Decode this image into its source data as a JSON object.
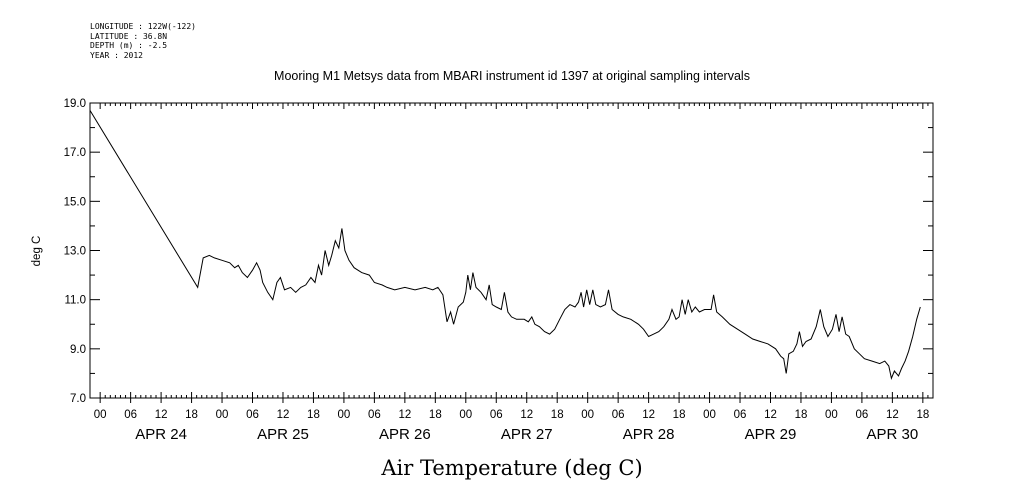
{
  "header": {
    "longitude": "LONGITUDE : 122W(-122)",
    "latitude": "LATITUDE : 36.8N",
    "depth": "DEPTH (m) : -2.5",
    "year": "YEAR : 2012"
  },
  "caption": "Air Temperature (deg C)",
  "chart_data": {
    "type": "line",
    "title": "Mooring M1 Metsys data from MBARI instrument id 1397 at original sampling intervals",
    "ylabel": "deg C",
    "xlabel": "",
    "ylim": [
      7.0,
      19.0
    ],
    "y_ticks": [
      "7.0",
      "9.0",
      "11.0",
      "13.0",
      "15.0",
      "17.0",
      "19.0"
    ],
    "x_unit": "hours since APR 24 00:00",
    "xlim": [
      -2,
      164
    ],
    "x_hour_labels": [
      "00",
      "06",
      "12",
      "18",
      "00",
      "06",
      "12",
      "18",
      "00",
      "06",
      "12",
      "18",
      "00",
      "06",
      "12",
      "18",
      "00",
      "06",
      "12",
      "18",
      "00",
      "06",
      "12",
      "18",
      "00",
      "06",
      "12",
      "18"
    ],
    "x_day_labels": [
      "APR 24",
      "APR 25",
      "APR 26",
      "APR 27",
      "APR 28",
      "APR 29",
      "APR 30"
    ],
    "grid": false,
    "series": [
      {
        "points": [
          [
            -2,
            18.7
          ],
          [
            19.2,
            11.5
          ],
          [
            20.3,
            12.7
          ],
          [
            21.5,
            12.8
          ],
          [
            22.5,
            12.7
          ],
          [
            24,
            12.6
          ],
          [
            25.5,
            12.5
          ],
          [
            26.5,
            12.3
          ],
          [
            27.2,
            12.4
          ],
          [
            28,
            12.1
          ],
          [
            29,
            11.9
          ],
          [
            30,
            12.2
          ],
          [
            30.8,
            12.5
          ],
          [
            31.5,
            12.2
          ],
          [
            32,
            11.7
          ],
          [
            33,
            11.3
          ],
          [
            34,
            11.0
          ],
          [
            34.8,
            11.7
          ],
          [
            35.5,
            11.9
          ],
          [
            36.3,
            11.4
          ],
          [
            37.5,
            11.5
          ],
          [
            38.5,
            11.3
          ],
          [
            39.5,
            11.5
          ],
          [
            40.5,
            11.6
          ],
          [
            41.5,
            11.9
          ],
          [
            42.3,
            11.7
          ],
          [
            43,
            12.4
          ],
          [
            43.6,
            12.0
          ],
          [
            44.3,
            13.0
          ],
          [
            45,
            12.4
          ],
          [
            45.6,
            12.8
          ],
          [
            46.3,
            13.4
          ],
          [
            47,
            13.1
          ],
          [
            47.6,
            13.9
          ],
          [
            48.2,
            13.0
          ],
          [
            49,
            12.6
          ],
          [
            50,
            12.3
          ],
          [
            51.5,
            12.1
          ],
          [
            53,
            12.0
          ],
          [
            54,
            11.7
          ],
          [
            55.5,
            11.6
          ],
          [
            56.5,
            11.5
          ],
          [
            58,
            11.4
          ],
          [
            60,
            11.5
          ],
          [
            62,
            11.4
          ],
          [
            64,
            11.5
          ],
          [
            65.5,
            11.4
          ],
          [
            66.5,
            11.5
          ],
          [
            67.5,
            11.2
          ],
          [
            68.3,
            10.1
          ],
          [
            69,
            10.5
          ],
          [
            69.6,
            10.0
          ],
          [
            70.5,
            10.7
          ],
          [
            71.5,
            10.9
          ],
          [
            72,
            11.3
          ],
          [
            72.4,
            12.0
          ],
          [
            72.9,
            11.4
          ],
          [
            73.4,
            12.1
          ],
          [
            74,
            11.5
          ],
          [
            75,
            11.3
          ],
          [
            76,
            11.0
          ],
          [
            76.6,
            11.6
          ],
          [
            77.2,
            10.8
          ],
          [
            78,
            10.7
          ],
          [
            79,
            10.6
          ],
          [
            79.6,
            11.3
          ],
          [
            80.3,
            10.5
          ],
          [
            81,
            10.3
          ],
          [
            82,
            10.2
          ],
          [
            83.5,
            10.2
          ],
          [
            84.3,
            10.1
          ],
          [
            85,
            10.3
          ],
          [
            85.6,
            10.0
          ],
          [
            86.5,
            9.9
          ],
          [
            87.5,
            9.7
          ],
          [
            88.5,
            9.6
          ],
          [
            89.5,
            9.8
          ],
          [
            90.5,
            10.2
          ],
          [
            91.5,
            10.6
          ],
          [
            92.5,
            10.8
          ],
          [
            93.5,
            10.7
          ],
          [
            94.2,
            10.9
          ],
          [
            94.7,
            11.3
          ],
          [
            95.2,
            10.7
          ],
          [
            95.8,
            11.4
          ],
          [
            96.4,
            10.8
          ],
          [
            97,
            11.4
          ],
          [
            97.6,
            10.8
          ],
          [
            98.5,
            10.7
          ],
          [
            99.5,
            10.8
          ],
          [
            100.1,
            11.4
          ],
          [
            100.8,
            10.6
          ],
          [
            102,
            10.4
          ],
          [
            103,
            10.3
          ],
          [
            104.5,
            10.2
          ],
          [
            106,
            10.0
          ],
          [
            107,
            9.8
          ],
          [
            108,
            9.5
          ],
          [
            109,
            9.6
          ],
          [
            110,
            9.7
          ],
          [
            111,
            9.9
          ],
          [
            112,
            10.2
          ],
          [
            112.6,
            10.6
          ],
          [
            113.4,
            10.2
          ],
          [
            114,
            10.3
          ],
          [
            114.6,
            11.0
          ],
          [
            115.2,
            10.4
          ],
          [
            115.8,
            11.0
          ],
          [
            116.5,
            10.5
          ],
          [
            117.2,
            10.7
          ],
          [
            118,
            10.5
          ],
          [
            119,
            10.6
          ],
          [
            120.3,
            10.6
          ],
          [
            120.8,
            11.2
          ],
          [
            121.4,
            10.5
          ],
          [
            122.5,
            10.3
          ],
          [
            124,
            10.0
          ],
          [
            125.5,
            9.8
          ],
          [
            127,
            9.6
          ],
          [
            128.5,
            9.4
          ],
          [
            130,
            9.3
          ],
          [
            131.5,
            9.2
          ],
          [
            133,
            9.0
          ],
          [
            134,
            8.7
          ],
          [
            134.6,
            8.6
          ],
          [
            135.1,
            8.0
          ],
          [
            135.6,
            8.8
          ],
          [
            136.5,
            8.9
          ],
          [
            137.2,
            9.2
          ],
          [
            137.7,
            9.7
          ],
          [
            138.3,
            9.1
          ],
          [
            139,
            9.3
          ],
          [
            140,
            9.4
          ],
          [
            141,
            9.9
          ],
          [
            141.8,
            10.6
          ],
          [
            142.5,
            9.9
          ],
          [
            143.3,
            9.5
          ],
          [
            144.2,
            9.8
          ],
          [
            144.9,
            10.4
          ],
          [
            145.5,
            9.7
          ],
          [
            146.1,
            10.3
          ],
          [
            146.8,
            9.6
          ],
          [
            147.5,
            9.5
          ],
          [
            148.5,
            9.0
          ],
          [
            149.5,
            8.8
          ],
          [
            150.5,
            8.6
          ],
          [
            152,
            8.5
          ],
          [
            153.5,
            8.4
          ],
          [
            154.5,
            8.5
          ],
          [
            155.3,
            8.3
          ],
          [
            155.8,
            7.8
          ],
          [
            156.4,
            8.1
          ],
          [
            157.2,
            7.9
          ],
          [
            157.8,
            8.2
          ],
          [
            158.5,
            8.5
          ],
          [
            159.2,
            8.9
          ],
          [
            160,
            9.5
          ],
          [
            160.8,
            10.2
          ],
          [
            161.5,
            10.7
          ]
        ]
      }
    ]
  }
}
